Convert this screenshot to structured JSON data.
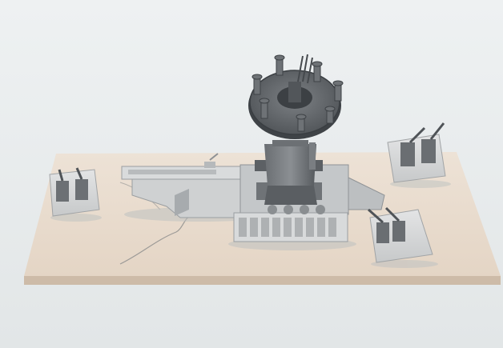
{
  "photo": {
    "subject_icon": "ship-model-icon",
    "colors": {
      "backdrop": "#e7ebec",
      "base_board": "#e9dccf",
      "base_edge": "#cbb9a6",
      "model_light": "#d2d4d5",
      "model_mid": "#a9adb0",
      "model_dark": "#5e6266",
      "shadow": "#c9cccb"
    }
  }
}
